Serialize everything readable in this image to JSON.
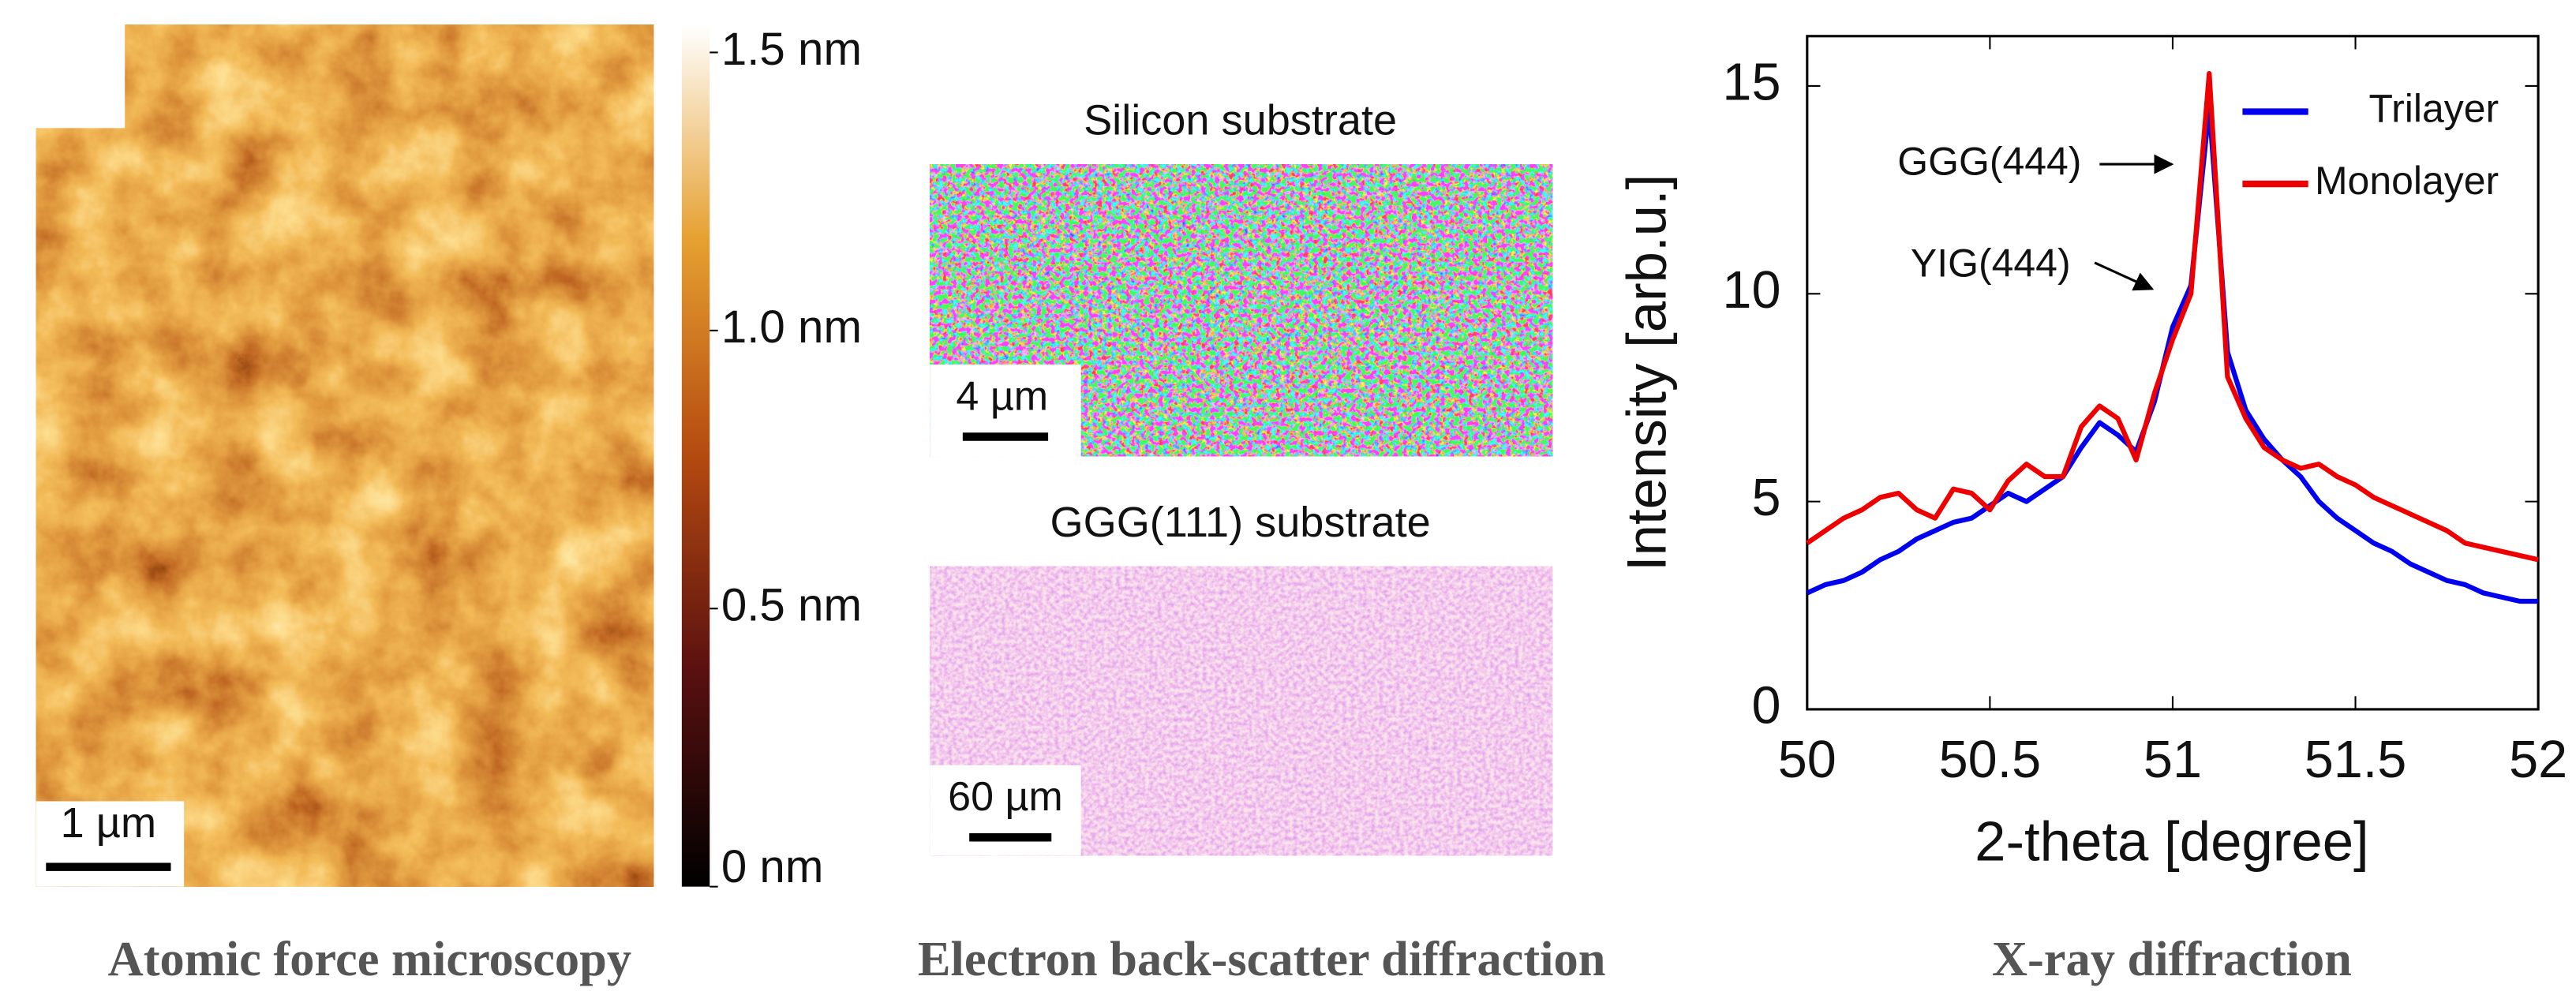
{
  "afm": {
    "colorbar_ticks": [
      {
        "value": 1.5,
        "label": "1.5 nm"
      },
      {
        "value": 1.0,
        "label": "1.0 nm"
      },
      {
        "value": 0.5,
        "label": "0.5 nm"
      },
      {
        "value": 0,
        "label": "0 nm"
      }
    ],
    "colorbar_lim": [
      0,
      1.55
    ],
    "scale_bar": "1 µm",
    "caption": "Atomic force microscopy"
  },
  "ebsd": {
    "panels": [
      {
        "title": "Silicon substrate",
        "scale_bar": "4 µm"
      },
      {
        "title": "GGG(111) substrate",
        "scale_bar": "60 µm"
      }
    ],
    "caption": "Electron back-scatter diffraction"
  },
  "xrd_caption": "X-ray diffraction",
  "chart_data": {
    "type": "line",
    "xlabel": "2-theta [degree]",
    "ylabel": "Intensity [arb.u.]",
    "annotations": [
      "GGG(444)",
      "YIG(444)"
    ],
    "x": [
      50,
      50.05,
      50.1,
      50.15,
      50.2,
      50.25,
      50.3,
      50.35,
      50.4,
      50.45,
      50.5,
      50.55,
      50.6,
      50.65,
      50.7,
      50.75,
      50.8,
      50.85,
      50.9,
      50.95,
      51,
      51.05,
      51.1,
      51.15,
      51.2,
      51.25,
      51.3,
      51.35,
      51.4,
      51.45,
      51.5,
      51.55,
      51.6,
      51.65,
      51.7,
      51.75,
      51.8,
      51.85,
      51.9,
      51.95,
      52
    ],
    "series": [
      {
        "name": "Trilayer",
        "color": "#0000ee",
        "values": [
          2.8,
          3.0,
          3.1,
          3.3,
          3.6,
          3.8,
          4.1,
          4.3,
          4.5,
          4.6,
          4.9,
          5.2,
          5.0,
          5.3,
          5.6,
          6.3,
          6.9,
          6.6,
          6.2,
          7.4,
          9.2,
          10.2,
          14.5,
          8.6,
          7.2,
          6.5,
          6.0,
          5.6,
          5.0,
          4.6,
          4.3,
          4.0,
          3.8,
          3.5,
          3.3,
          3.1,
          3.0,
          2.8,
          2.7,
          2.6,
          2.6
        ]
      },
      {
        "name": "Monolayer",
        "color": "#ee0000",
        "values": [
          4.0,
          4.3,
          4.6,
          4.8,
          5.1,
          5.2,
          4.8,
          4.6,
          5.3,
          5.2,
          4.8,
          5.5,
          5.9,
          5.6,
          5.6,
          6.8,
          7.3,
          7.0,
          6.0,
          7.6,
          8.9,
          10.0,
          15.3,
          8.0,
          7.0,
          6.3,
          6.0,
          5.8,
          5.9,
          5.6,
          5.4,
          5.1,
          4.9,
          4.7,
          4.5,
          4.3,
          4.0,
          3.9,
          3.8,
          3.7,
          3.6
        ]
      }
    ],
    "xlim": [
      50,
      52
    ],
    "ylim": [
      0,
      16.2
    ],
    "xticks": [
      50,
      50.5,
      51,
      51.5,
      52
    ],
    "yticks": [
      0,
      5,
      10,
      15
    ],
    "legend": "upper right",
    "grid": false
  }
}
